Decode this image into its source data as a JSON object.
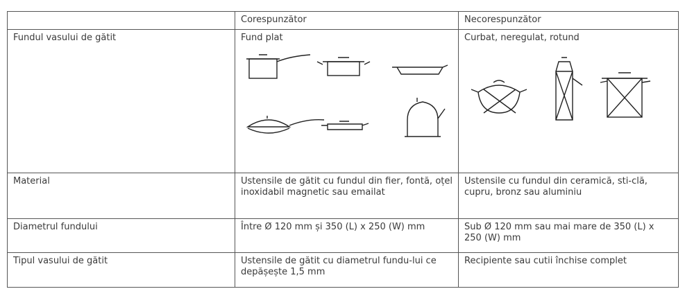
{
  "table": {
    "header": [
      "",
      "Corespunzător",
      "Necorespunzător"
    ],
    "rows": [
      [
        "Fundul vasului de gătit",
        "Fund plat",
        "Curbat, neregulat, rotund"
      ],
      [
        "Material",
        "Ustensile de gătit cu fundul din fier, fontă, oțel inoxidabil magnetic sau emailat",
        "Ustensile cu fundul din ceramică, sti-clă, cupru, bronz sau aluminiu"
      ],
      [
        "Diametrul fundului",
        "Între Ø 120 mm și 350 (L) x 250 (W) mm",
        "Sub Ø 120 mm sau mai mare de 350 (L) x 250 (W) mm"
      ],
      [
        "Tipul vasului de gătit",
        "Ustensile de gătit cu diametrul fundu-lui ce depășește 1,5 mm",
        "Recipiente sau cutii închise complet"
      ]
    ]
  }
}
